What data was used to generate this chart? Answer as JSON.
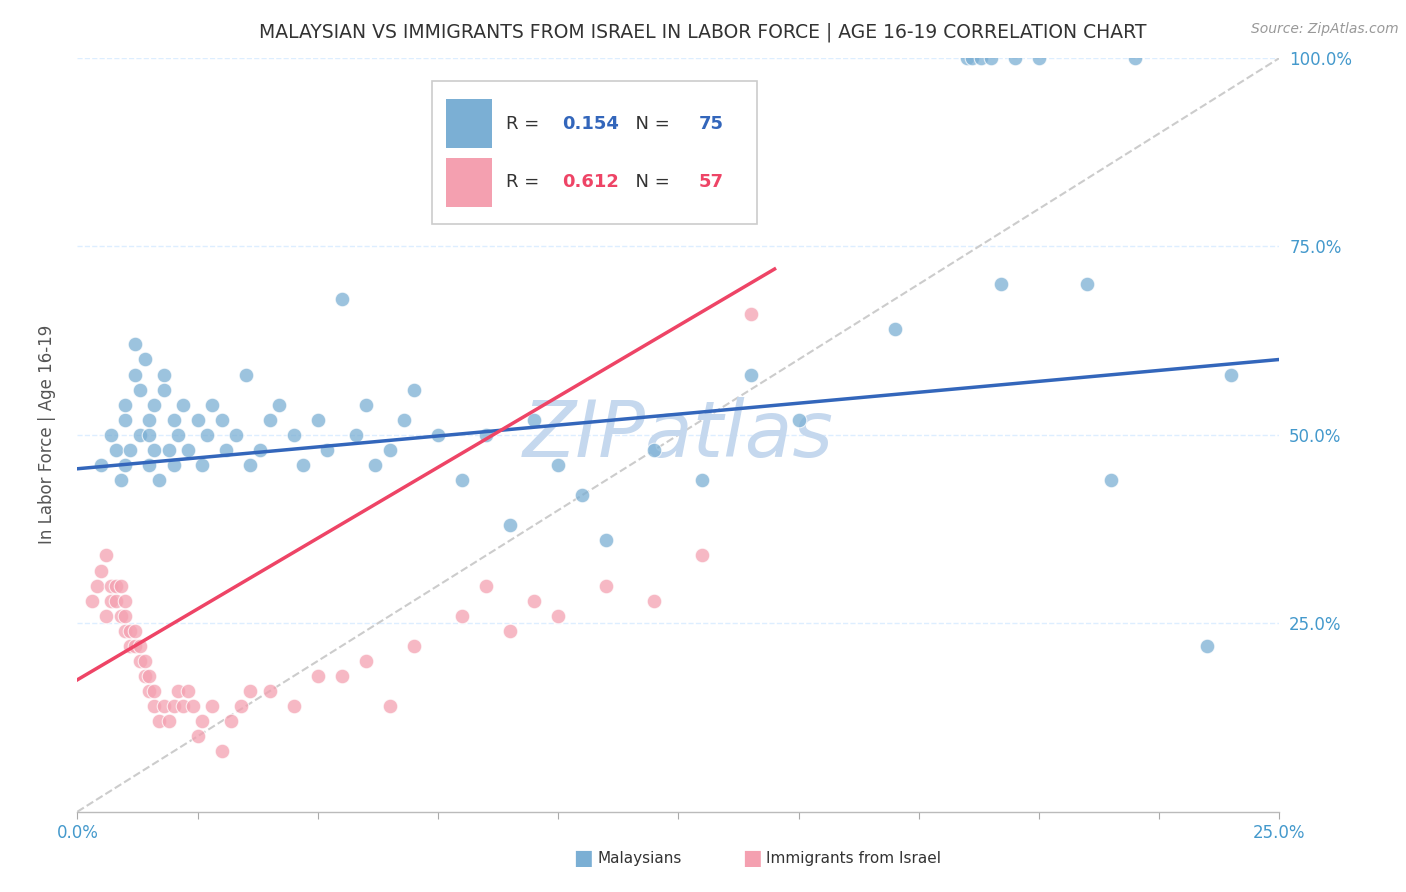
{
  "title": "MALAYSIAN VS IMMIGRANTS FROM ISRAEL IN LABOR FORCE | AGE 16-19 CORRELATION CHART",
  "source": "Source: ZipAtlas.com",
  "ylabel": "In Labor Force | Age 16-19",
  "xmin": 0.0,
  "xmax": 0.25,
  "ymin": 0.0,
  "ymax": 1.0,
  "blue_R": 0.154,
  "blue_N": 75,
  "pink_R": 0.612,
  "pink_N": 57,
  "blue_color": "#7BAFD4",
  "pink_color": "#F4A0B0",
  "blue_line_color": "#3366BB",
  "pink_line_color": "#EE4466",
  "legend_blue_text_color": "#3366BB",
  "legend_pink_text_color": "#EE4466",
  "watermark_color": "#C5D8EE",
  "title_color": "#333333",
  "axis_label_color": "#4499CC",
  "grid_color": "#DDEEFF",
  "background_color": "#FFFFFF",
  "blue_scatter_x": [
    0.005,
    0.007,
    0.008,
    0.009,
    0.01,
    0.01,
    0.01,
    0.011,
    0.012,
    0.012,
    0.013,
    0.013,
    0.014,
    0.015,
    0.015,
    0.015,
    0.016,
    0.016,
    0.017,
    0.018,
    0.018,
    0.019,
    0.02,
    0.02,
    0.021,
    0.022,
    0.023,
    0.025,
    0.026,
    0.027,
    0.028,
    0.03,
    0.031,
    0.033,
    0.035,
    0.036,
    0.038,
    0.04,
    0.042,
    0.045,
    0.047,
    0.05,
    0.052,
    0.055,
    0.058,
    0.06,
    0.062,
    0.065,
    0.068,
    0.07,
    0.075,
    0.08,
    0.085,
    0.09,
    0.095,
    0.1,
    0.105,
    0.11,
    0.12,
    0.13,
    0.14,
    0.15,
    0.17,
    0.185,
    0.186,
    0.188,
    0.19,
    0.192,
    0.195,
    0.2,
    0.21,
    0.215,
    0.22,
    0.235,
    0.24
  ],
  "blue_scatter_y": [
    0.46,
    0.5,
    0.48,
    0.44,
    0.52,
    0.54,
    0.46,
    0.48,
    0.62,
    0.58,
    0.5,
    0.56,
    0.6,
    0.46,
    0.5,
    0.52,
    0.48,
    0.54,
    0.44,
    0.58,
    0.56,
    0.48,
    0.52,
    0.46,
    0.5,
    0.54,
    0.48,
    0.52,
    0.46,
    0.5,
    0.54,
    0.52,
    0.48,
    0.5,
    0.58,
    0.46,
    0.48,
    0.52,
    0.54,
    0.5,
    0.46,
    0.52,
    0.48,
    0.68,
    0.5,
    0.54,
    0.46,
    0.48,
    0.52,
    0.56,
    0.5,
    0.44,
    0.5,
    0.38,
    0.52,
    0.46,
    0.42,
    0.36,
    0.48,
    0.44,
    0.58,
    0.52,
    0.64,
    1.0,
    1.0,
    1.0,
    1.0,
    0.7,
    1.0,
    1.0,
    0.7,
    0.44,
    1.0,
    0.22,
    0.58
  ],
  "pink_scatter_x": [
    0.003,
    0.004,
    0.005,
    0.006,
    0.006,
    0.007,
    0.007,
    0.008,
    0.008,
    0.009,
    0.009,
    0.01,
    0.01,
    0.01,
    0.011,
    0.011,
    0.012,
    0.012,
    0.013,
    0.013,
    0.014,
    0.014,
    0.015,
    0.015,
    0.016,
    0.016,
    0.017,
    0.018,
    0.019,
    0.02,
    0.021,
    0.022,
    0.023,
    0.024,
    0.025,
    0.026,
    0.028,
    0.03,
    0.032,
    0.034,
    0.036,
    0.04,
    0.045,
    0.05,
    0.055,
    0.06,
    0.065,
    0.07,
    0.08,
    0.085,
    0.09,
    0.095,
    0.1,
    0.11,
    0.12,
    0.13,
    0.14
  ],
  "pink_scatter_y": [
    0.28,
    0.3,
    0.32,
    0.34,
    0.26,
    0.28,
    0.3,
    0.28,
    0.3,
    0.26,
    0.3,
    0.24,
    0.26,
    0.28,
    0.22,
    0.24,
    0.22,
    0.24,
    0.2,
    0.22,
    0.18,
    0.2,
    0.16,
    0.18,
    0.14,
    0.16,
    0.12,
    0.14,
    0.12,
    0.14,
    0.16,
    0.14,
    0.16,
    0.14,
    0.1,
    0.12,
    0.14,
    0.08,
    0.12,
    0.14,
    0.16,
    0.16,
    0.14,
    0.18,
    0.18,
    0.2,
    0.14,
    0.22,
    0.26,
    0.3,
    0.24,
    0.28,
    0.26,
    0.3,
    0.28,
    0.34,
    0.66
  ],
  "blue_line_x": [
    0.0,
    0.25
  ],
  "blue_line_y": [
    0.455,
    0.6
  ],
  "pink_line_x": [
    0.0,
    0.145
  ],
  "pink_line_y": [
    0.175,
    0.72
  ],
  "diag_line_x": [
    0.0,
    0.25
  ],
  "diag_line_y": [
    0.0,
    1.0
  ]
}
